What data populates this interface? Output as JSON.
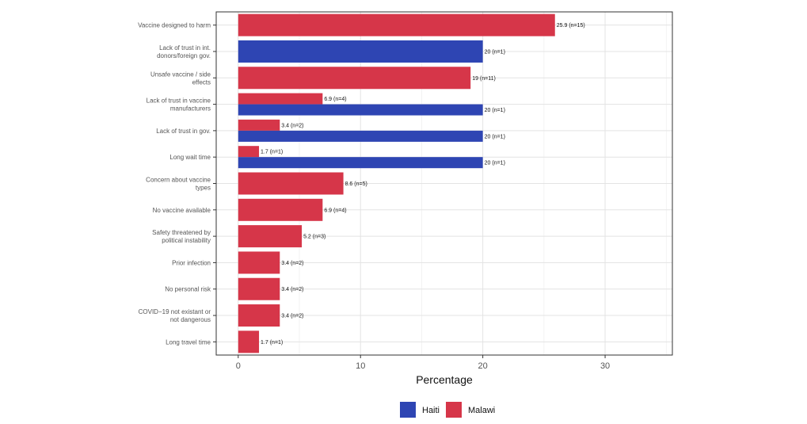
{
  "chart_data": {
    "type": "bar",
    "orientation": "horizontal",
    "xlabel": "Percentage",
    "ylabel": "",
    "xlim": [
      -1.8,
      35.5
    ],
    "xticks": [
      0,
      10,
      20,
      30
    ],
    "grid": true,
    "legend_position": "bottom",
    "colors": {
      "Haiti": "#2e45b3",
      "Malawi": "#d63649"
    },
    "categories": [
      {
        "label": [
          "Vaccine designed to harm"
        ],
        "bars": [
          {
            "series": "Malawi",
            "value": 25.9,
            "text": "25.9 (n=15)"
          }
        ]
      },
      {
        "label": [
          "Lack of trust in int.",
          "donors/foreign gov."
        ],
        "bars": [
          {
            "series": "Haiti",
            "value": 20,
            "text": "20 (n=1)"
          }
        ]
      },
      {
        "label": [
          "Unsafe vaccine / side",
          "effects"
        ],
        "bars": [
          {
            "series": "Malawi",
            "value": 19,
            "text": "19 (n=11)"
          }
        ]
      },
      {
        "label": [
          "Lack of trust in vaccine",
          "manufacturers"
        ],
        "bars": [
          {
            "series": "Malawi",
            "value": 6.9,
            "text": "6.9 (n=4)"
          },
          {
            "series": "Haiti",
            "value": 20,
            "text": "20 (n=1)"
          }
        ]
      },
      {
        "label": [
          "Lack of trust in gov."
        ],
        "bars": [
          {
            "series": "Malawi",
            "value": 3.4,
            "text": "3.4 (n=2)"
          },
          {
            "series": "Haiti",
            "value": 20,
            "text": "20 (n=1)"
          }
        ]
      },
      {
        "label": [
          "Long wait time"
        ],
        "bars": [
          {
            "series": "Malawi",
            "value": 1.7,
            "text": "1.7 (n=1)"
          },
          {
            "series": "Haiti",
            "value": 20,
            "text": "20 (n=1)"
          }
        ]
      },
      {
        "label": [
          "Concern about vaccine",
          "types"
        ],
        "bars": [
          {
            "series": "Malawi",
            "value": 8.6,
            "text": "8.6 (n=5)"
          }
        ]
      },
      {
        "label": [
          "No vaccine available"
        ],
        "bars": [
          {
            "series": "Malawi",
            "value": 6.9,
            "text": "6.9 (n=4)"
          }
        ]
      },
      {
        "label": [
          "Safety threatened by",
          "political instability"
        ],
        "bars": [
          {
            "series": "Malawi",
            "value": 5.2,
            "text": "5.2 (n=3)"
          }
        ]
      },
      {
        "label": [
          "Prior infection"
        ],
        "bars": [
          {
            "series": "Malawi",
            "value": 3.4,
            "text": "3.4 (n=2)"
          }
        ]
      },
      {
        "label": [
          "No personal risk"
        ],
        "bars": [
          {
            "series": "Malawi",
            "value": 3.4,
            "text": "3.4 (n=2)"
          }
        ]
      },
      {
        "label": [
          "COVID−19 not existant or",
          "not dangerous"
        ],
        "bars": [
          {
            "series": "Malawi",
            "value": 3.4,
            "text": "3.4 (n=2)"
          }
        ]
      },
      {
        "label": [
          "Long travel time"
        ],
        "bars": [
          {
            "series": "Malawi",
            "value": 1.7,
            "text": "1.7 (n=1)"
          }
        ]
      }
    ],
    "legend": [
      {
        "name": "Haiti"
      },
      {
        "name": "Malawi"
      }
    ]
  }
}
